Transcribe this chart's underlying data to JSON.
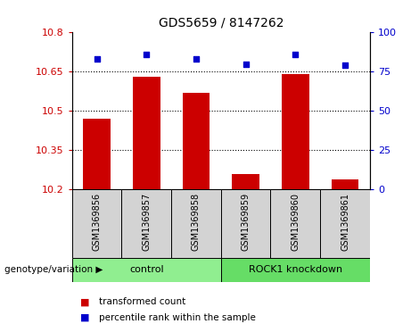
{
  "title": "GDS5659 / 8147262",
  "categories": [
    "GSM1369856",
    "GSM1369857",
    "GSM1369858",
    "GSM1369859",
    "GSM1369860",
    "GSM1369861"
  ],
  "bar_values": [
    10.47,
    10.63,
    10.57,
    10.26,
    10.64,
    10.24
  ],
  "bar_bottom": 10.2,
  "percentile_values": [
    83,
    86,
    83,
    80,
    86,
    79
  ],
  "bar_color": "#cc0000",
  "dot_color": "#0000cc",
  "ylim_left": [
    10.2,
    10.8
  ],
  "ylim_right": [
    0,
    100
  ],
  "yticks_left": [
    10.2,
    10.35,
    10.5,
    10.65,
    10.8
  ],
  "yticks_right": [
    0,
    25,
    50,
    75,
    100
  ],
  "ytick_labels_left": [
    "10.2",
    "10.35",
    "10.5",
    "10.65",
    "10.8"
  ],
  "ytick_labels_right": [
    "0",
    "25",
    "50",
    "75",
    "100"
  ],
  "group_labels": [
    "control",
    "ROCK1 knockdown"
  ],
  "group_colors": [
    "#90ee90",
    "#66dd66"
  ],
  "left_tick_color": "#cc0000",
  "right_tick_color": "#0000cc",
  "grid_lines": [
    10.35,
    10.5,
    10.65
  ],
  "legend_items": [
    {
      "label": "transformed count",
      "color": "#cc0000"
    },
    {
      "label": "percentile rank within the sample",
      "color": "#0000cc"
    }
  ],
  "genotype_label": "genotype/variation",
  "bar_width": 0.55,
  "cat_label_color": "#333333",
  "plot_bg": "#f0f0f0"
}
